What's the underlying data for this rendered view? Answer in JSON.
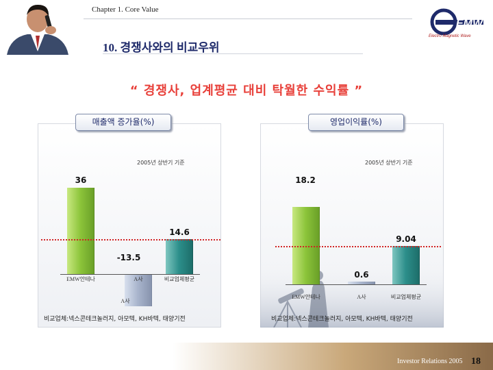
{
  "header": {
    "chapter": "Chapter 1. Core Value",
    "title": "10. 경쟁사와의 비교우위",
    "logo_text": "EMW",
    "logo_subtitle": "Electro Magnetic Wave"
  },
  "subtitle": "“ 경쟁사, 업계평균 대비 탁월한 수익률 ”",
  "colors": {
    "accent": "#e8403a",
    "title": "#1e2a6a",
    "green_bar": "#8cc43a",
    "teal_bar": "#2c8e8a",
    "gray_bar": "#a8b4cc",
    "reference_line": "#d22222"
  },
  "chart_data": [
    {
      "type": "bar",
      "title": "매출액 증가율(%)",
      "subtitle": "2005년 상반기 기준",
      "categories": [
        "EMW안테나",
        "A사",
        "비교업체평균"
      ],
      "values": [
        36,
        -13.5,
        14.6
      ],
      "value_labels": [
        "36",
        "-13.5",
        "14.6"
      ],
      "highlight_label": "A사",
      "ylim": [
        -20,
        40
      ],
      "note": "비교업체:넥스콘테크놀러지, 아모텍, KH바텍, 태양기전"
    },
    {
      "type": "bar",
      "title": "영업이익률(%)",
      "subtitle": "2005년 상반기 기준",
      "categories": [
        "EMW안테나",
        "A사",
        "비교업체평균"
      ],
      "values": [
        18.2,
        0.6,
        9.04
      ],
      "value_labels": [
        "18.2",
        "0.6",
        "9.04"
      ],
      "ylim": [
        0,
        20
      ],
      "note": "비교업체:넥스콘테크놀러지, 아모텍, KH바텍, 태양기전"
    }
  ],
  "footer": {
    "text": "Investor Relations 2005",
    "page": "18"
  }
}
